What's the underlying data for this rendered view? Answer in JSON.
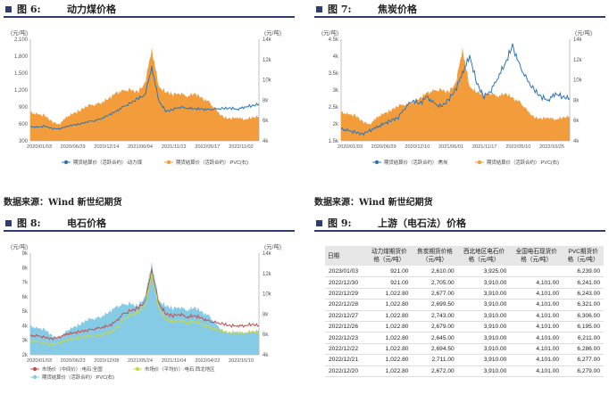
{
  "panels": {
    "p6": {
      "fig": "图 6:",
      "name": "动力煤价格"
    },
    "p7": {
      "fig": "图 7:",
      "name": "焦炭价格"
    },
    "p8": {
      "fig": "图 8:",
      "name": "电石价格"
    },
    "p9": {
      "fig": "图 9:",
      "name": "上游（电石法）价格"
    }
  },
  "source_text": "数据来源：Wind  新世纪期货",
  "colors": {
    "orange": "#f39c3c",
    "blue": "#2e75b6",
    "lightblue": "#86cbe6",
    "red": "#c0504d",
    "yellowgreen": "#c9d83a",
    "title": "#2d3f6e"
  },
  "chart_data": [
    {
      "type": "area",
      "unit_left": "(元/吨)",
      "unit_right": "(元/吨)",
      "y_ticks": [
        "2,100",
        "1,800",
        "1,500",
        "1,200",
        "900",
        "600",
        "300"
      ],
      "y2_ticks": [
        "14k",
        "12k",
        "10k",
        "8k",
        "6k",
        "4k"
      ],
      "x_ticks": [
        "2020/01/03",
        "2020/06/29",
        "2020/12/14",
        "2021/06/04",
        "2021/11/23",
        "2022/05/17",
        "2022/11/02"
      ],
      "ylim": [
        300,
        2100
      ],
      "y2lim": [
        4000,
        14000
      ],
      "legend": [
        "期货结算价（活跃合约）:动力煤",
        "期货结算价（活跃合约）:PVC(右)"
      ],
      "series": [
        {
          "name": "期货结算价（活跃合约）:动力煤",
          "axis": "left",
          "style": "line",
          "values": [
            550,
            540,
            560,
            520,
            510,
            550,
            580,
            600,
            640,
            660,
            700,
            760,
            820,
            900,
            960,
            1050,
            1100,
            1600,
            1000,
            820,
            860,
            900,
            880,
            870,
            860,
            850,
            860,
            870,
            880,
            860,
            900,
            920,
            950
          ]
        },
        {
          "name": "期货结算价（活跃合约）:PVC(右)",
          "axis": "right",
          "style": "area",
          "values": [
            6800,
            6600,
            6500,
            5900,
            5600,
            6300,
            6700,
            7000,
            7500,
            7600,
            7800,
            8200,
            8700,
            8900,
            9000,
            8800,
            9600,
            13000,
            9300,
            8800,
            8600,
            8700,
            8400,
            8700,
            8200,
            7800,
            7000,
            6300,
            6200,
            6300,
            6100,
            6300,
            6400
          ]
        }
      ]
    },
    {
      "type": "area",
      "unit_left": "(元/吨)",
      "unit_right": "(元/吨)",
      "y_ticks": [
        "4.5k",
        "4k",
        "3.5k",
        "3k",
        "2.5k",
        "2k",
        "1.5k"
      ],
      "y2_ticks": [
        "14k",
        "12k",
        "10k",
        "8k",
        "6k",
        "4k"
      ],
      "x_ticks": [
        "2020/01/03",
        "2020/06/29",
        "2020/12/10",
        "2021/06/01",
        "2021/11/17",
        "2022/05/10",
        "2022/10/25"
      ],
      "ylim": [
        1500,
        4500
      ],
      "y2lim": [
        4000,
        14000
      ],
      "legend": [
        "期货结算价（活跃合约）:焦炭",
        "期货结算价（活跃合约）:PVC(右)"
      ],
      "series": [
        {
          "name": "期货结算价（活跃合约）:焦炭",
          "axis": "left",
          "style": "line",
          "values": [
            1850,
            1800,
            1750,
            1700,
            1800,
            1900,
            2000,
            2100,
            2200,
            2500,
            2700,
            2600,
            2800,
            2600,
            2500,
            2700,
            3000,
            3500,
            4000,
            3200,
            2800,
            3000,
            3400,
            3800,
            4300,
            3700,
            3300,
            3000,
            2800,
            2700,
            2900,
            2800,
            2750
          ]
        },
        {
          "name": "期货结算价（活跃合约）:PVC(右)",
          "axis": "right",
          "style": "area",
          "values": [
            6800,
            6600,
            6500,
            5900,
            5600,
            6300,
            6700,
            7000,
            7500,
            7600,
            7800,
            8200,
            8700,
            8900,
            9000,
            8800,
            9600,
            13000,
            9300,
            8800,
            8600,
            8700,
            8400,
            8700,
            8200,
            7800,
            7000,
            6300,
            6200,
            6300,
            6100,
            6300,
            6400
          ]
        }
      ]
    },
    {
      "type": "area",
      "unit_left": "(元/吨)",
      "unit_right": "(元/吨)",
      "y_ticks": [
        "9k",
        "8k",
        "7k",
        "6k",
        "5k",
        "4k",
        "3k",
        "2k"
      ],
      "y2_ticks": [
        "14k",
        "12k",
        "10k",
        "8k",
        "6k",
        "4k"
      ],
      "x_ticks": [
        "2020/01/03",
        "2020/06/23",
        "2020/12/08",
        "2021/05/24",
        "2021/11/04",
        "2022/04/22",
        "2022/10/10"
      ],
      "ylim": [
        2000,
        9000
      ],
      "y2lim": [
        4000,
        14000
      ],
      "legend": [
        "市场价（中间价）:电石:全国",
        "市场价（平均价）:电石:西北地区",
        "期货结算价（活跃合约）:PVC(右)"
      ],
      "series": [
        {
          "name": "市场价（中间价）:电石:全国",
          "axis": "left",
          "style": "line",
          "values": [
            3300,
            3300,
            3200,
            3100,
            3200,
            3400,
            3500,
            3600,
            3700,
            3800,
            3900,
            4000,
            4300,
            4800,
            5000,
            5200,
            5600,
            7800,
            5500,
            4800,
            4700,
            4800,
            4600,
            4700,
            4500,
            4300,
            4200,
            4100,
            4000,
            4000,
            4000,
            4100,
            4000
          ]
        },
        {
          "name": "市场价（平均价）:电石:西北地区",
          "axis": "left",
          "style": "line",
          "values": [
            2900,
            2900,
            2800,
            2700,
            2800,
            3000,
            3100,
            3200,
            3300,
            3300,
            3400,
            3500,
            3800,
            4400,
            4700,
            4900,
            5300,
            7500,
            5200,
            4400,
            4300,
            4400,
            4200,
            4300,
            4100,
            3900,
            3700,
            3600,
            3500,
            3500,
            3500,
            3600,
            3500
          ]
        },
        {
          "name": "期货结算价（活跃合约）:PVC(右)",
          "axis": "right",
          "style": "area",
          "values": [
            6800,
            6600,
            6500,
            5900,
            5600,
            6300,
            6700,
            7000,
            7500,
            7600,
            7800,
            8200,
            8700,
            8900,
            9000,
            8800,
            9600,
            13000,
            9300,
            8800,
            8600,
            8700,
            8400,
            8700,
            8200,
            7800,
            7000,
            6300,
            6200,
            6300,
            6100,
            6300,
            6400
          ]
        }
      ]
    },
    {
      "type": "table",
      "columns": [
        "日期",
        "动力煤期货价格（元/吨）",
        "焦炭期货价格（元/吨）",
        "西北地区电石价格（元/吨）",
        "全国电石现货价格（元/吨）",
        "PVC期货价格（元/吨）"
      ],
      "header_lines": [
        [
          "日期"
        ],
        [
          "动力煤期货价",
          "格（元/吨）"
        ],
        [
          "焦炭期货价格",
          "（元/吨）"
        ],
        [
          "西北地区电石价",
          "格（元/吨）"
        ],
        [
          "全国电石现货价",
          "格（元/吨）"
        ],
        [
          "PVC期货价",
          "格（元/吨）"
        ]
      ],
      "rows": [
        [
          "2023/01/03",
          "921.00",
          "2,610.00",
          "3,925.00",
          "",
          "6,239.00"
        ],
        [
          "2022/12/30",
          "921.00",
          "2,705.00",
          "3,910.00",
          "4,101.00",
          "6,241.00"
        ],
        [
          "2022/12/29",
          "1,022.80",
          "2,677.00",
          "3,910.00",
          "4,101.00",
          "6,243.00"
        ],
        [
          "2022/12/28",
          "1,022.80",
          "2,699.50",
          "3,910.00",
          "4,101.00",
          "6,321.00"
        ],
        [
          "2022/12/27",
          "1,022.80",
          "2,743.00",
          "3,910.00",
          "4,101.00",
          "6,306.00"
        ],
        [
          "2022/12/26",
          "1,022.80",
          "2,679.00",
          "3,910.00",
          "4,101.00",
          "6,195.00"
        ],
        [
          "2022/12/23",
          "1,022.80",
          "2,645.00",
          "3,910.00",
          "4,101.00",
          "6,211.00"
        ],
        [
          "2022/12/22",
          "1,022.80",
          "2,694.50",
          "3,910.00",
          "4,101.00",
          "6,286.00"
        ],
        [
          "2022/12/21",
          "1,022.80",
          "2,711.00",
          "3,910.00",
          "4,101.00",
          "6,277.00"
        ],
        [
          "2022/12/20",
          "1,022.80",
          "2,672.00",
          "3,910.00",
          "4,101.00",
          "6,279.00"
        ]
      ]
    }
  ]
}
